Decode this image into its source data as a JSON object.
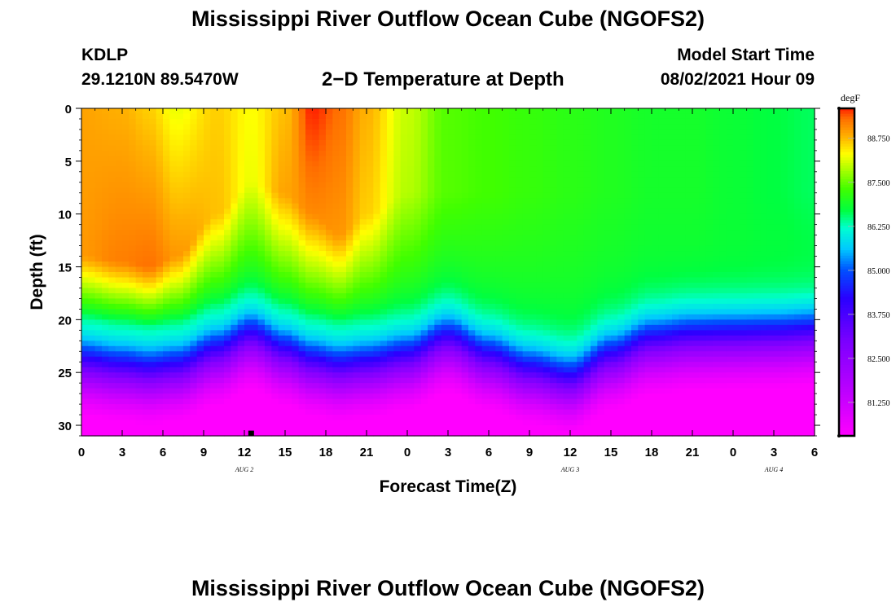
{
  "header": {
    "title": "Mississippi River Outflow Ocean Cube (NGOFS2)",
    "station": "KDLP",
    "coordinates": "29.1210N  89.5470W",
    "plot_title": "2−D Temperature at Depth",
    "model_start_label": "Model Start Time",
    "model_start_time": "08/02/2021 Hour 09"
  },
  "footer": {
    "title": "Mississippi River Outflow Ocean Cube (NGOFS2)"
  },
  "chart_data": {
    "type": "heatmap",
    "title": "2−D Temperature at Depth",
    "xlabel": "Forecast Time(Z)",
    "ylabel": "Depth (ft)",
    "x_tick_labels": [
      "0",
      "3",
      "6",
      "9",
      "12",
      "15",
      "18",
      "21",
      "0",
      "3",
      "6",
      "9",
      "12",
      "15",
      "18",
      "21",
      "0",
      "3",
      "6"
    ],
    "x_range_hours": [
      0,
      54
    ],
    "date_labels": [
      {
        "text": "AUG 2",
        "hour": 12
      },
      {
        "text": "AUG 3",
        "hour": 36
      },
      {
        "text": "AUG 4",
        "hour": 51
      }
    ],
    "y_ticks": [
      0,
      5,
      10,
      15,
      20,
      25,
      30
    ],
    "y_range": [
      0,
      31
    ],
    "y_inverted": true,
    "colorbar": {
      "unit": "degF",
      "min": 80.3,
      "max": 89.6,
      "labels": [
        "88.750",
        "87.500",
        "86.250",
        "85.000",
        "83.750",
        "82.500",
        "81.250"
      ],
      "label_values": [
        88.75,
        87.5,
        86.25,
        85.0,
        83.75,
        82.5,
        81.25
      ]
    },
    "color_scale": [
      {
        "value": 80.3,
        "color": "#ff00ff"
      },
      {
        "value": 81.5,
        "color": "#c000ff"
      },
      {
        "value": 83.0,
        "color": "#7a00ff"
      },
      {
        "value": 84.2,
        "color": "#2a00ff"
      },
      {
        "value": 85.0,
        "color": "#0050ff"
      },
      {
        "value": 85.6,
        "color": "#00c8ff"
      },
      {
        "value": 86.2,
        "color": "#00ffd0"
      },
      {
        "value": 86.7,
        "color": "#00ff40"
      },
      {
        "value": 87.3,
        "color": "#40ff00"
      },
      {
        "value": 87.8,
        "color": "#a0ff00"
      },
      {
        "value": 88.3,
        "color": "#ffff00"
      },
      {
        "value": 88.8,
        "color": "#ffb000"
      },
      {
        "value": 89.3,
        "color": "#ff7000"
      },
      {
        "value": 89.6,
        "color": "#ff2000"
      }
    ],
    "series": [
      {
        "hour": 0,
        "surface_temp": 88.9,
        "thermocline_depth": 22.0,
        "hot_core_temp": 89.0,
        "hot_core_depth": 14.0
      },
      {
        "hour": 3,
        "surface_temp": 88.8,
        "thermocline_depth": 22.5,
        "hot_core_temp": 89.2,
        "hot_core_depth": 14.5
      },
      {
        "hour": 5,
        "surface_temp": 88.6,
        "thermocline_depth": 22.8,
        "hot_core_temp": 89.3,
        "hot_core_depth": 15.0
      },
      {
        "hour": 7,
        "surface_temp": 88.2,
        "thermocline_depth": 22.5,
        "hot_core_temp": 89.0,
        "hot_core_depth": 14.0
      },
      {
        "hour": 10,
        "surface_temp": 88.6,
        "thermocline_depth": 21.0,
        "hot_core_temp": 88.7,
        "hot_core_depth": 10.0
      },
      {
        "hour": 12.5,
        "surface_temp": 88.3,
        "thermocline_depth": 19.5,
        "hot_core_temp": 88.2,
        "hot_core_depth": 7.0
      },
      {
        "hour": 15,
        "surface_temp": 88.7,
        "thermocline_depth": 21.0,
        "hot_core_temp": 88.9,
        "hot_core_depth": 8.0
      },
      {
        "hour": 17,
        "surface_temp": 89.6,
        "thermocline_depth": 22.0,
        "hot_core_temp": 89.1,
        "hot_core_depth": 10.0
      },
      {
        "hour": 19,
        "surface_temp": 89.3,
        "thermocline_depth": 22.5,
        "hot_core_temp": 89.0,
        "hot_core_depth": 12.0
      },
      {
        "hour": 21,
        "surface_temp": 88.8,
        "thermocline_depth": 22.2,
        "hot_core_temp": 88.6,
        "hot_core_depth": 10.0
      },
      {
        "hour": 24,
        "surface_temp": 88.0,
        "thermocline_depth": 21.5,
        "hot_core_temp": 87.9,
        "hot_core_depth": 8.0
      },
      {
        "hour": 27,
        "surface_temp": 87.4,
        "thermocline_depth": 19.8,
        "hot_core_temp": 87.4,
        "hot_core_depth": 8.0
      },
      {
        "hour": 30,
        "surface_temp": 87.3,
        "thermocline_depth": 21.5,
        "hot_core_temp": 87.3,
        "hot_core_depth": 8.0
      },
      {
        "hour": 33,
        "surface_temp": 87.2,
        "thermocline_depth": 22.8,
        "hot_core_temp": 87.2,
        "hot_core_depth": 8.0
      },
      {
        "hour": 36,
        "surface_temp": 87.1,
        "thermocline_depth": 23.6,
        "hot_core_temp": 87.1,
        "hot_core_depth": 8.0
      },
      {
        "hour": 39,
        "surface_temp": 87.0,
        "thermocline_depth": 21.5,
        "hot_core_temp": 87.0,
        "hot_core_depth": 8.0
      },
      {
        "hour": 42,
        "surface_temp": 86.9,
        "thermocline_depth": 20.0,
        "hot_core_temp": 86.9,
        "hot_core_depth": 8.0
      },
      {
        "hour": 45,
        "surface_temp": 86.9,
        "thermocline_depth": 19.6,
        "hot_core_temp": 86.9,
        "hot_core_depth": 8.0
      },
      {
        "hour": 48,
        "surface_temp": 86.8,
        "thermocline_depth": 19.5,
        "hot_core_temp": 86.8,
        "hot_core_depth": 8.0
      },
      {
        "hour": 51,
        "surface_temp": 86.7,
        "thermocline_depth": 19.4,
        "hot_core_temp": 86.7,
        "hot_core_depth": 8.0
      },
      {
        "hour": 54,
        "surface_temp": 86.6,
        "thermocline_depth": 19.2,
        "hot_core_temp": 86.6,
        "hot_core_depth": 8.0
      }
    ],
    "bottom_temp": 80.4,
    "marker": {
      "hour": 12.5,
      "depth": 30.7
    }
  }
}
